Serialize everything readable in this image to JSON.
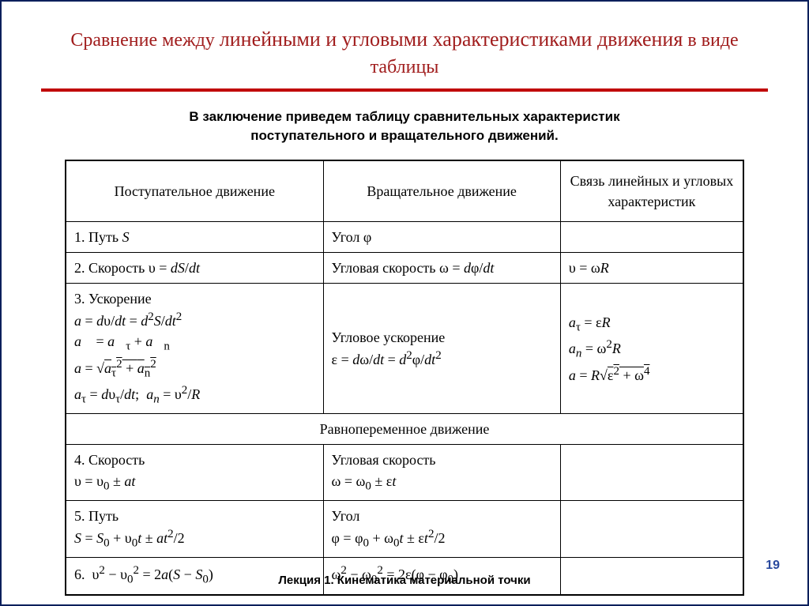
{
  "title_html": "Сравнение между <span class='big'>линейными и угловыми характеристиками движения</span> в виде таблицы",
  "subtitle_html": "В заключение приведем таблицу сравнительных характеристик<br>поступательного и вращательного движений.",
  "headers": {
    "c1": "Поступательное движение",
    "c2": "Вращательное движение",
    "c3": "Связь линейных и угловых характеристик"
  },
  "rows": [
    {
      "c1": "1. Путь <i>S</i>",
      "c2": "Угол φ",
      "c3": ""
    },
    {
      "c1": "2. Скорость υ = <i>dS</i>/<i>dt</i>",
      "c2": "Угловая скорость ω = <i>d</i>φ/<i>dt</i>",
      "c3": "υ = ω<i>R</i>"
    },
    {
      "c1": "3. Ускорение<br><i>a</i> = <i>d</i>υ/<i>dt</i> = <i>d</i><sup>2</sup><i>S</i>/<i>dt</i><sup>2</sup><br><i>a⃗</i> = <i>a⃗</i><sub>τ</sub> + <i>a⃗</i><sub>n</sub><br><i>a</i> = √<span class='sqrt'><i>a</i><sub>τ</sub><sup>2</sup> + <i>a</i><sub>n</sub><sup>2</sup></span><br><i>a</i><sub>τ</sub> = <i>d</i>υ<sub>τ</sub>/<i>dt</i>; &nbsp;<i>a<sub>n</sub></i> = υ<sup>2</sup>/<i>R</i>",
      "c2": "Угловое ускорение<br>ε = <i>d</i>ω/<i>dt</i> = <i>d</i><sup>2</sup>φ/<i>dt</i><sup>2</sup>",
      "c3": "<i>a</i><sub>τ</sub> = ε<i>R</i><br><i>a<sub>n</sub></i> = ω<sup>2</sup><i>R</i><br><i>a</i> = <i>R</i>√<span class='sqrt'>ε<sup>2</sup> + ω<sup>4</sup></span>"
    }
  ],
  "section": "Равнопеременное движение",
  "rows2": [
    {
      "c1": "4. Скорость<br>υ = υ<sub>0</sub> ± <i>at</i>",
      "c2": "Угловая скорость<br>ω = ω<sub>0</sub> ± ε<i>t</i>",
      "c3": ""
    },
    {
      "c1": "5. Путь<br><i>S</i> = <i>S</i><sub>0</sub> + υ<sub>0</sub><i>t</i> ± <i>at</i><sup>2</sup>/2",
      "c2": "Угол<br>φ = φ<sub>0</sub> + ω<sub>0</sub><i>t</i> ± ε<i>t</i><sup>2</sup>/2",
      "c3": ""
    },
    {
      "c1": "6. &nbsp;υ<sup>2</sup> − υ<sub>0</sub><sup>2</sup> = 2<i>a</i>(<i>S</i> − <i>S</i><sub>0</sub>)",
      "c2": "ω<sup>2</sup> − ω<sub>0</sub><sup>2</sup> = 2ε(φ − φ<sub>0</sub>)",
      "c3": ""
    }
  ],
  "footer": "Лекция 1. Кинематика материальной точки",
  "page": "19",
  "colors": {
    "title": "#a01c1c",
    "rule": "#c00000",
    "border": "#0a1f5c",
    "pnum": "#2a4a9e"
  }
}
